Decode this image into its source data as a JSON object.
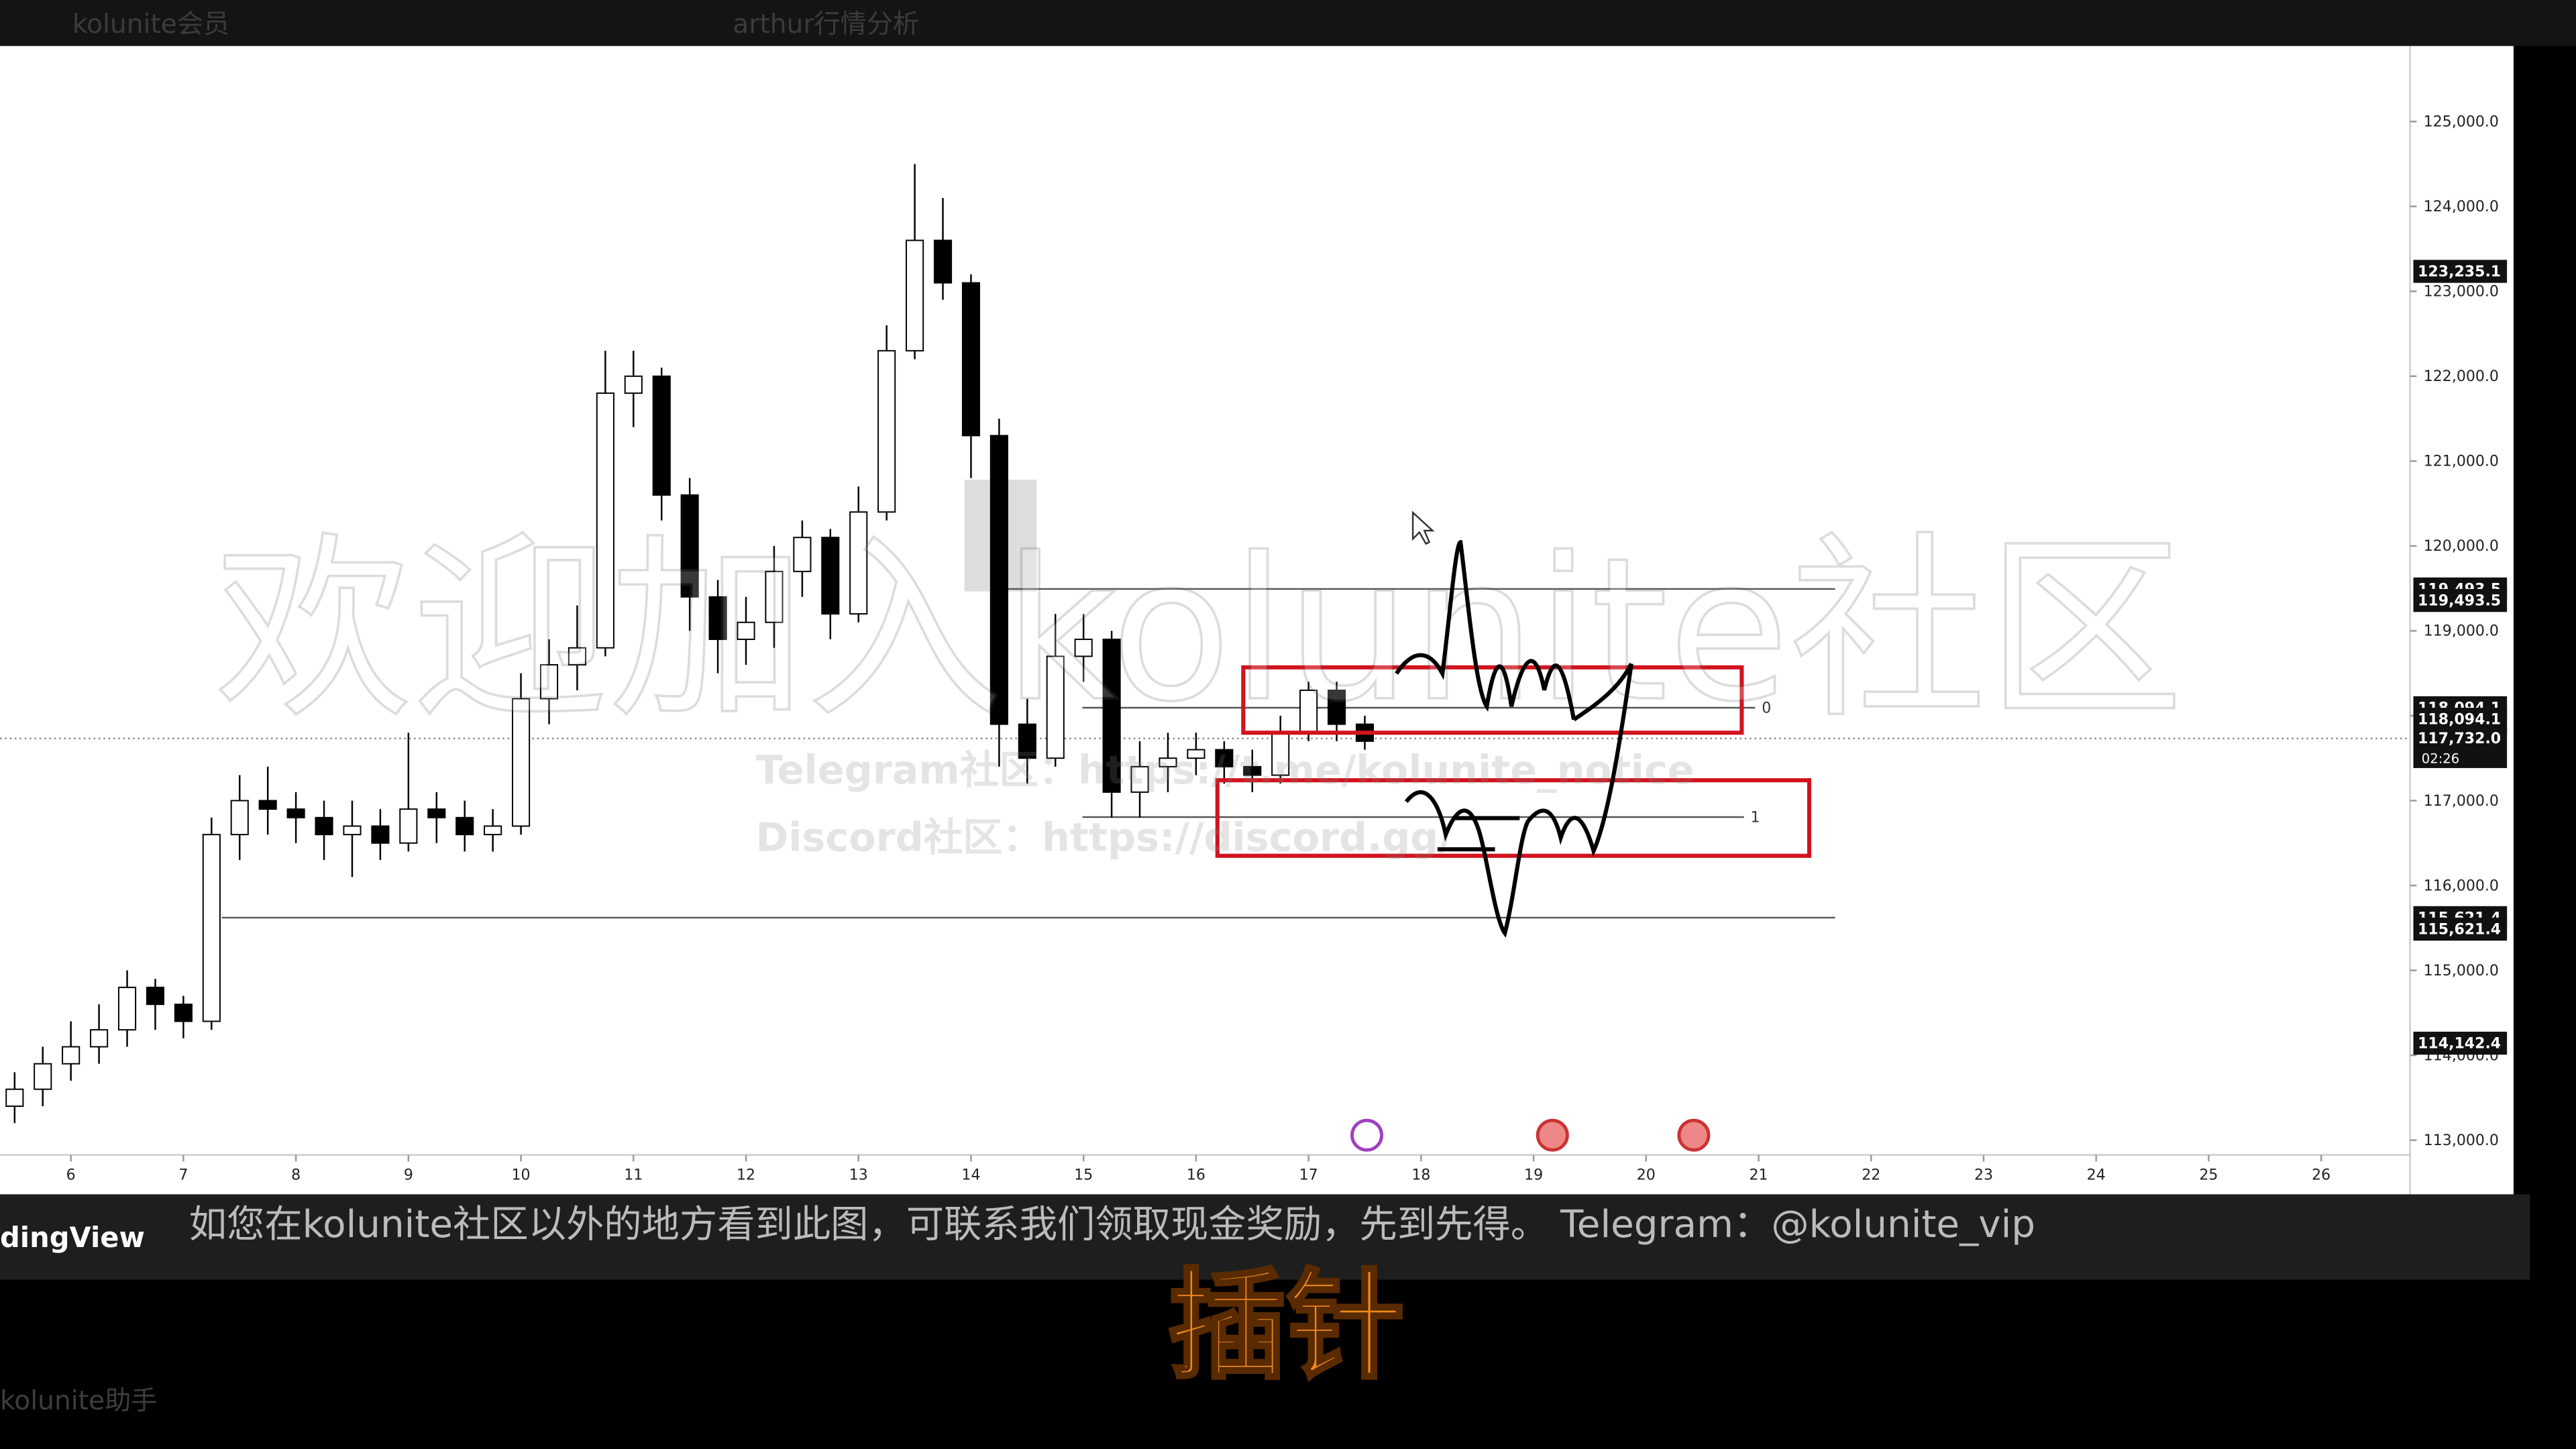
{
  "top_bar": {
    "channel": "kolunite会员",
    "title": "arthur行情分析"
  },
  "chart_data": {
    "type": "candlestick",
    "x": [
      5.5,
      5.75,
      6,
      6.25,
      6.5,
      6.75,
      7,
      7.25,
      7.5,
      7.75,
      8,
      8.25,
      8.5,
      8.75,
      9,
      9.25,
      9.5,
      9.75,
      10,
      10.25,
      10.5,
      10.75,
      11,
      11.25,
      11.5,
      11.75,
      12,
      12.25,
      12.5,
      12.75,
      13,
      13.25,
      13.5,
      13.75,
      14,
      14.25,
      14.5,
      14.75,
      15,
      15.25,
      15.5,
      15.75,
      16,
      16.25,
      16.5,
      16.75,
      17,
      17.25,
      17.5
    ],
    "open": [
      113400,
      113600,
      113900,
      114100,
      114300,
      114800,
      114600,
      114400,
      116600,
      117000,
      116900,
      116800,
      116600,
      116700,
      116500,
      116900,
      116800,
      116600,
      116700,
      118200,
      118600,
      118800,
      121800,
      122000,
      120600,
      119400,
      118900,
      119100,
      119700,
      120100,
      119200,
      120400,
      122300,
      123600,
      123100,
      121300,
      117900,
      117500,
      118700,
      118900,
      117100,
      117400,
      117500,
      117600,
      117400,
      117300,
      117800,
      118300,
      117900
    ],
    "high": [
      113800,
      114100,
      114400,
      114600,
      115000,
      114900,
      114700,
      116800,
      117300,
      117400,
      117100,
      117000,
      117000,
      116900,
      117800,
      117100,
      117000,
      116900,
      118500,
      118900,
      119300,
      122300,
      122300,
      122100,
      120800,
      119600,
      119400,
      120000,
      120300,
      120200,
      120700,
      122600,
      124500,
      124100,
      123200,
      121500,
      118200,
      119200,
      119200,
      119000,
      117700,
      117800,
      117800,
      117700,
      117600,
      118000,
      118400,
      118400,
      118000
    ],
    "low": [
      113200,
      113400,
      113700,
      113900,
      114100,
      114300,
      114200,
      114300,
      116300,
      116600,
      116500,
      116300,
      116100,
      116300,
      116400,
      116500,
      116400,
      116400,
      116600,
      117900,
      118300,
      118700,
      121400,
      120300,
      119000,
      118500,
      118600,
      118800,
      119400,
      118900,
      119100,
      120300,
      122200,
      122900,
      120800,
      117400,
      117200,
      117400,
      118400,
      116800,
      116800,
      117100,
      117300,
      117200,
      117100,
      117200,
      117700,
      117700,
      117600
    ],
    "close": [
      113600,
      113900,
      114100,
      114300,
      114800,
      114600,
      114400,
      116600,
      117000,
      116900,
      116800,
      116600,
      116700,
      116500,
      116900,
      116800,
      116600,
      116700,
      118200,
      118600,
      118800,
      121800,
      122000,
      120600,
      119400,
      118900,
      119100,
      119700,
      120100,
      119200,
      120400,
      122300,
      123600,
      123100,
      121300,
      117900,
      117500,
      118700,
      118900,
      117100,
      117400,
      117500,
      117600,
      117400,
      117300,
      117800,
      118300,
      117900,
      117700
    ],
    "up_color": "#ffffff",
    "down_color": "#000000",
    "wick_color": "#000000",
    "xlim": [
      5.37,
      26.79
    ],
    "xticks": [
      6,
      7,
      8,
      9,
      10,
      11,
      12,
      13,
      14,
      15,
      16,
      17,
      18,
      19,
      20,
      21,
      22,
      23,
      24,
      25,
      26
    ],
    "ylim": [
      112826,
      125890
    ],
    "yticks": [
      {
        "value": 113000,
        "label": "113,000.0"
      },
      {
        "value": 114000,
        "label": "114,000.0"
      },
      {
        "value": 115000,
        "label": "115,000.0"
      },
      {
        "value": 116000,
        "label": "116,000.0"
      },
      {
        "value": 117000,
        "label": "117,000.0"
      },
      {
        "value": 118000,
        "label": "118,000.0"
      },
      {
        "value": 119000,
        "label": "119,000.0"
      },
      {
        "value": 120000,
        "label": "120,000.0"
      },
      {
        "value": 121000,
        "label": "121,000.0"
      },
      {
        "value": 122000,
        "label": "122,000.0"
      },
      {
        "value": 123000,
        "label": "123,000.0"
      },
      {
        "value": 124000,
        "label": "124,000.0"
      },
      {
        "value": 125000,
        "label": "125,000.0"
      }
    ],
    "levels": [
      {
        "value": 119493.5,
        "from": 14.2,
        "to": 21.68
      },
      {
        "value": 115621.4,
        "from": 7.34,
        "to": 21.68
      }
    ],
    "fib_levels": [
      {
        "value": 118094.1,
        "from": 14.99,
        "to": 20.97,
        "label": "0"
      },
      {
        "value": 116806,
        "from": 14.99,
        "to": 20.87,
        "label": "1"
      }
    ],
    "rectangles": [
      {
        "x0": 16.42,
        "x1": 20.85,
        "y0": 117800,
        "y1": 118570,
        "color": "#d0141e"
      },
      {
        "x0": 16.19,
        "x1": 21.45,
        "y0": 116350,
        "y1": 117240,
        "color": "#d0141e"
      }
    ],
    "last_price": 117732.0,
    "countdown": "02:26",
    "price_tags": [
      {
        "value": 123235.1,
        "label": "123,235.1"
      },
      {
        "value": 119493.5,
        "label": "119,493.5"
      },
      {
        "value": 119493.5,
        "label": "119,493.5"
      },
      {
        "value": 118094.1,
        "label": "118,094.1"
      },
      {
        "value": 118094.1,
        "label": "118,094.1"
      },
      {
        "value": 117732.0,
        "label": "117,732.0"
      },
      {
        "value": 115621.4,
        "label": "115,621.4"
      },
      {
        "value": 115621.4,
        "label": "115,621.4"
      },
      {
        "value": 114142.4,
        "label": "114,142.4"
      }
    ]
  },
  "watermark": {
    "main": "欢迎加入kolunite社区",
    "telegram": "Telegram社区：https://t.me/kolunite_notice",
    "discord": "Discord社区：https://discord.gg/"
  },
  "footer": {
    "brand": "dingView",
    "notice": "如您在kolunite社区以外的地方看到此图，可联系我们领取现金奖励，先到先得。 Telegram：@kolunite_vip",
    "subtitle": "插针"
  },
  "sidebar": {
    "item": "kolunite助手"
  }
}
